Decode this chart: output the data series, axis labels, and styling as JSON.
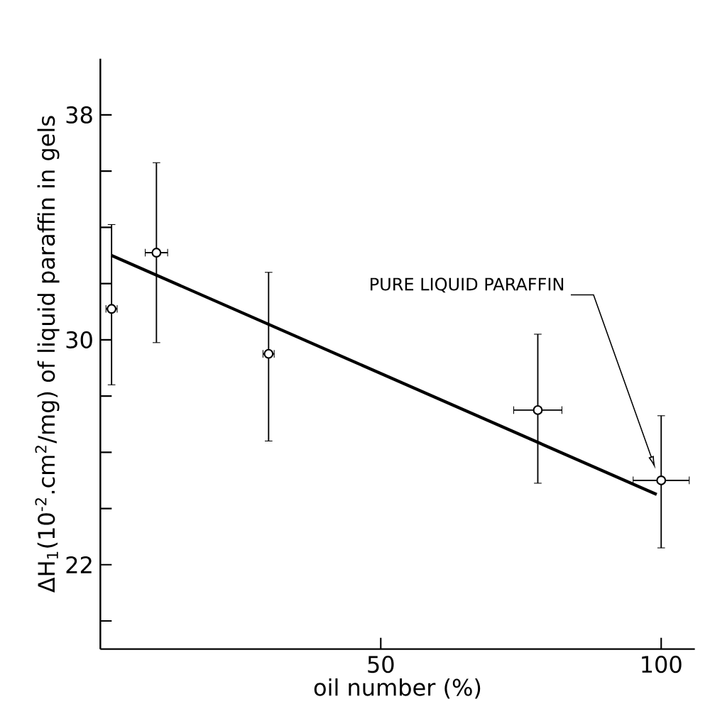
{
  "chart_data": {
    "type": "scatter",
    "xlabel": "oil number (%)",
    "ylabel": "ΔH$_{1}$(10$^{-2}$.cm$^{2}$/mg) of liquid paraffin in gels",
    "xlim": [
      0,
      106
    ],
    "ylim": [
      19,
      40
    ],
    "xticks": [
      50,
      100
    ],
    "yticks": [
      {
        "value": 20,
        "label": null
      },
      22,
      {
        "value": 24,
        "label": null
      },
      {
        "value": 26,
        "label": null
      },
      {
        "value": 28,
        "label": null
      },
      30,
      {
        "value": 32,
        "label": null
      },
      {
        "value": 34,
        "label": null
      },
      {
        "value": 36,
        "label": null
      },
      38
    ],
    "line_style": "solid",
    "series": [
      {
        "type": "scatter",
        "marker": "circle",
        "color": "#000000",
        "x": [
          2,
          10,
          30,
          78,
          100
        ],
        "values": [
          31.1,
          33.1,
          29.5,
          27.5,
          25.0
        ],
        "errors": [
          [
            28.4,
            34.1
          ],
          [
            29.9,
            36.3
          ],
          [
            26.4,
            32.4
          ],
          [
            24.9,
            30.2
          ],
          [
            22.6,
            27.3
          ]
        ],
        "xerrors": [
          1,
          2,
          1,
          4.3,
          5
        ]
      },
      {
        "type": "line",
        "marker": "none",
        "color": "#000000",
        "x": [
          2,
          99.2
        ],
        "values": [
          33.0,
          24.5
        ]
      }
    ],
    "annotations": [
      {
        "text": "PURE LIQUID PARAFFIN",
        "x": 99,
        "y": 25.4
      }
    ]
  }
}
